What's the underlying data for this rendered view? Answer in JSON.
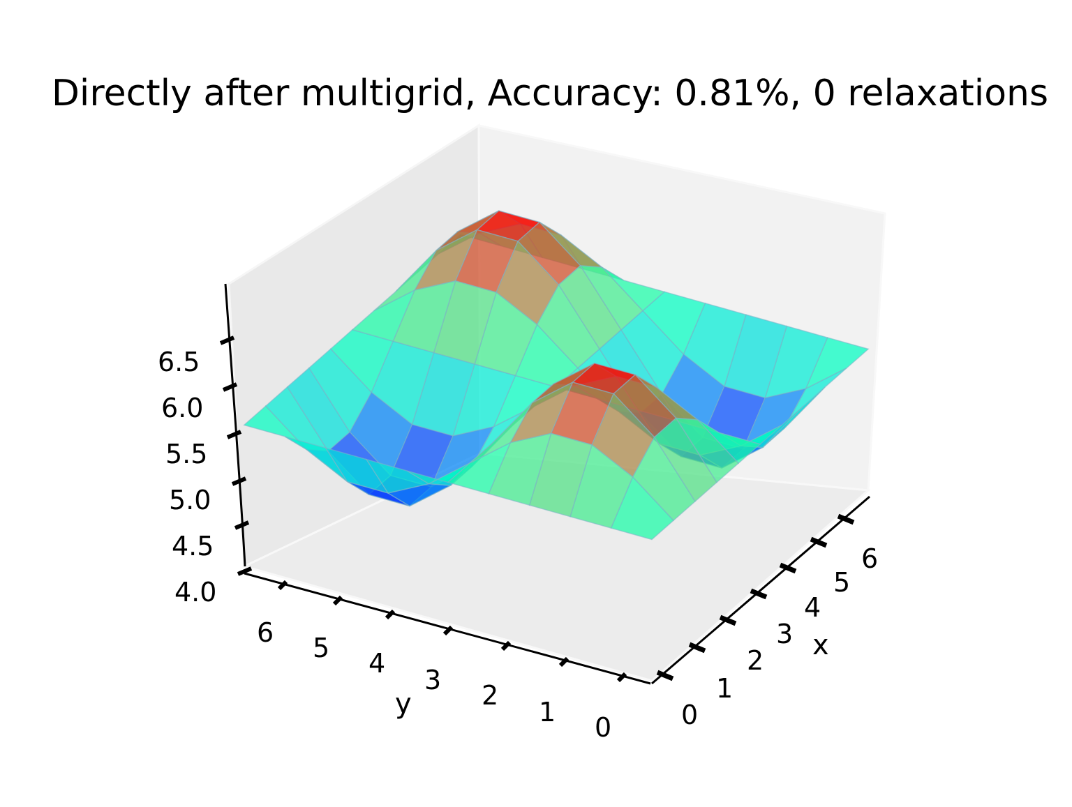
{
  "chart_data": {
    "type": "surface",
    "title": "Directly after multigrid, Accuracy: 0.81%, 0 relaxations",
    "xlabel": "x",
    "ylabel": "y",
    "zlabel": "",
    "xlim": [
      0,
      6.28
    ],
    "ylim": [
      0,
      6.28
    ],
    "zlim": [
      4.0,
      7.0
    ],
    "x_ticks": [
      "0",
      "1",
      "2",
      "3",
      "4",
      "5",
      "6"
    ],
    "y_ticks": [
      "0",
      "1",
      "2",
      "3",
      "4",
      "5",
      "6"
    ],
    "z_ticks": [
      "4.0",
      "4.5",
      "5.0",
      "5.5",
      "6.0",
      "6.5"
    ],
    "colormap": "rainbow",
    "grid": true,
    "x": [
      0,
      0.6283,
      1.2566,
      1.885,
      2.5133,
      3.1416,
      3.7699,
      4.3982,
      5.0265,
      5.6549,
      6.2832
    ],
    "y": [
      0,
      0.6283,
      1.2566,
      1.885,
      2.5133,
      3.1416,
      3.7699,
      4.3982,
      5.0265,
      5.6549,
      6.2832
    ],
    "z": [
      [
        5.5,
        5.5,
        5.5,
        5.5,
        5.5,
        5.5,
        5.5,
        5.5,
        5.5,
        5.5,
        5.5
      ],
      [
        5.5,
        5.84,
        6.06,
        6.06,
        5.84,
        5.5,
        5.16,
        4.94,
        4.94,
        5.16,
        5.5
      ],
      [
        5.5,
        6.06,
        6.4,
        6.4,
        6.06,
        5.5,
        4.94,
        4.6,
        4.6,
        4.94,
        5.5
      ],
      [
        5.5,
        6.06,
        6.4,
        6.4,
        6.06,
        5.5,
        4.94,
        4.6,
        4.6,
        4.94,
        5.5
      ],
      [
        5.5,
        5.84,
        6.06,
        6.06,
        5.84,
        5.5,
        5.16,
        4.94,
        4.94,
        5.16,
        5.5
      ],
      [
        5.5,
        5.5,
        5.5,
        5.5,
        5.5,
        5.5,
        5.5,
        5.5,
        5.5,
        5.5,
        5.5
      ],
      [
        5.5,
        5.16,
        4.94,
        4.94,
        5.16,
        5.5,
        5.84,
        6.06,
        6.06,
        5.84,
        5.5
      ],
      [
        5.5,
        4.94,
        4.6,
        4.6,
        4.94,
        5.5,
        6.06,
        6.4,
        6.4,
        6.06,
        5.5
      ],
      [
        5.5,
        4.94,
        4.6,
        4.6,
        4.94,
        5.5,
        6.06,
        6.4,
        6.4,
        6.06,
        5.5
      ],
      [
        5.5,
        5.16,
        4.94,
        4.94,
        5.16,
        5.5,
        5.84,
        6.06,
        6.06,
        5.84,
        5.5
      ],
      [
        5.5,
        5.5,
        5.5,
        5.5,
        5.5,
        5.5,
        5.5,
        5.5,
        5.5,
        5.5,
        5.5
      ]
    ]
  }
}
